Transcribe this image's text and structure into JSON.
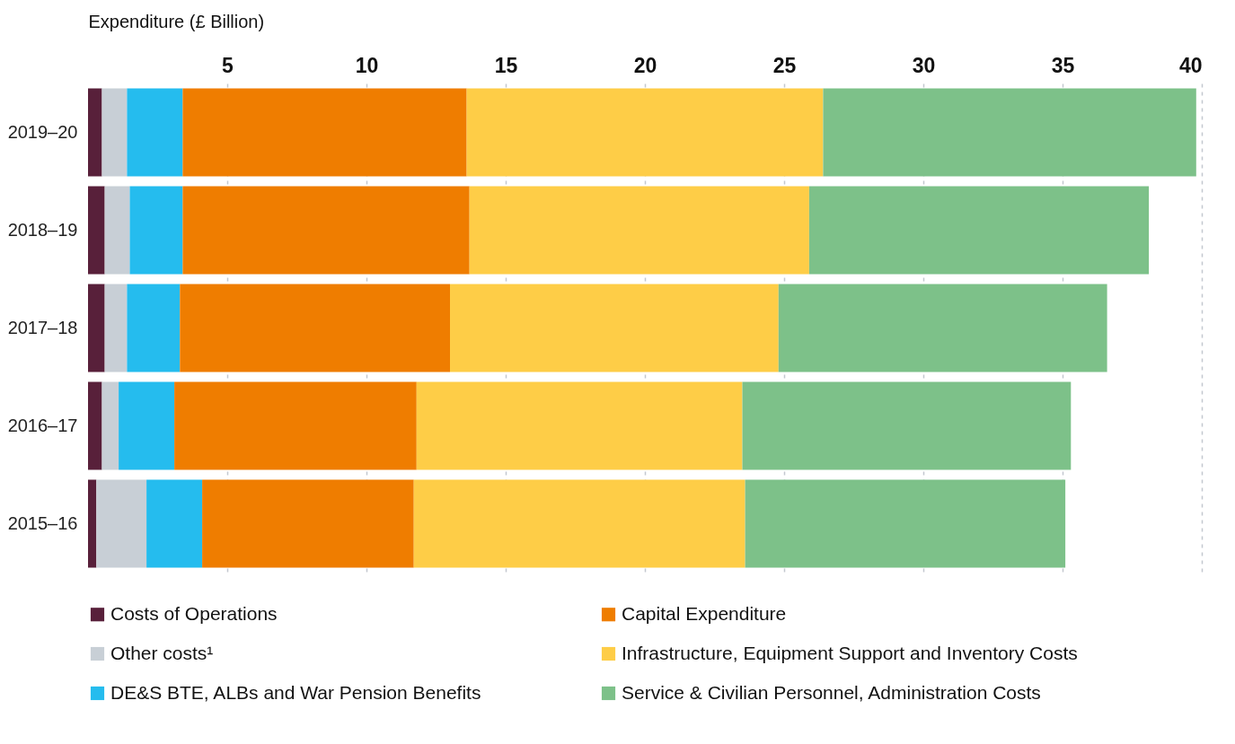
{
  "chart_data": {
    "type": "bar",
    "orientation": "horizontal",
    "stacked": true,
    "xlabel": "Expenditure (£ Billion)",
    "categories": [
      "2019–20",
      "2018–19",
      "2017–18",
      "2016–17",
      "2015–16"
    ],
    "series": [
      {
        "name": "Costs of Operations",
        "color": "#58203a",
        "values": [
          0.5,
          0.6,
          0.6,
          0.5,
          0.3
        ]
      },
      {
        "name": "Other costs¹",
        "color": "#c8cfd6",
        "values": [
          0.9,
          0.9,
          0.8,
          0.6,
          1.8
        ]
      },
      {
        "name": "DE&S BTE, ALBs and War Pension Benefits",
        "color": "#25bcee",
        "values": [
          2.0,
          1.9,
          1.9,
          2.0,
          2.0
        ]
      },
      {
        "name": "Capital Expenditure",
        "color": "#ef7d00",
        "values": [
          10.2,
          10.3,
          9.7,
          8.7,
          7.6
        ]
      },
      {
        "name": "Infrastructure, Equipment Support and Inventory Costs",
        "color": "#fecd47",
        "values": [
          12.8,
          12.2,
          11.8,
          11.7,
          11.9
        ]
      },
      {
        "name": "Service & Civilian Personnel, Administration Costs",
        "color": "#7dc189",
        "values": [
          13.4,
          12.2,
          11.8,
          11.8,
          11.5
        ]
      }
    ],
    "xlim": [
      0,
      40
    ],
    "xticks": [
      5,
      10,
      15,
      20,
      25,
      30,
      35,
      40
    ],
    "grid": true,
    "legend": "bottom"
  }
}
